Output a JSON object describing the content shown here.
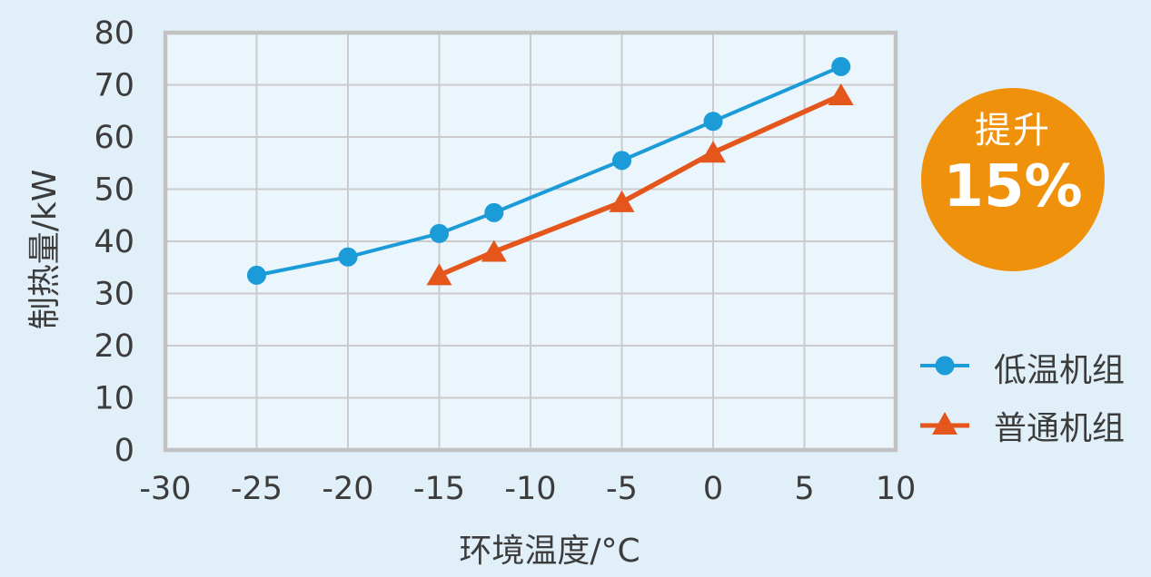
{
  "colors": {
    "page_background": "#E1EFF9",
    "plot_background": "#EAF5FC",
    "gridline": "#CBCBCB",
    "plot_border": "#C2C2C2",
    "text": "#3C3C3C"
  },
  "chart_data": {
    "type": "line",
    "title": "",
    "xlabel": "环境温度/°C",
    "ylabel": "制热量/kW",
    "xlim": [
      -30,
      10
    ],
    "ylim": [
      0,
      80
    ],
    "xticks": [
      -30,
      -25,
      -20,
      -15,
      -10,
      -5,
      0,
      5,
      10
    ],
    "yticks": [
      0,
      10,
      20,
      30,
      40,
      50,
      60,
      70,
      80
    ],
    "grid": true,
    "legend_position": "right-bottom",
    "series": [
      {
        "name": "低温机组",
        "color": "#1B9BD7",
        "marker": "circle",
        "line_width": 4,
        "x": [
          -25,
          -20,
          -15,
          -12,
          -5,
          0,
          7
        ],
        "y": [
          33.5,
          37,
          41.5,
          45.5,
          55.5,
          63,
          73.5
        ]
      },
      {
        "name": "普通机组",
        "color": "#E4561B",
        "marker": "triangle",
        "line_width": 5.5,
        "x": [
          -15,
          -12,
          -5,
          0,
          7
        ],
        "y": [
          33.5,
          38,
          47.5,
          57,
          68
        ]
      }
    ]
  },
  "badge": {
    "label": "提升",
    "value": "15%",
    "color": "#F0910B",
    "text_color": "#FFFFFF"
  }
}
